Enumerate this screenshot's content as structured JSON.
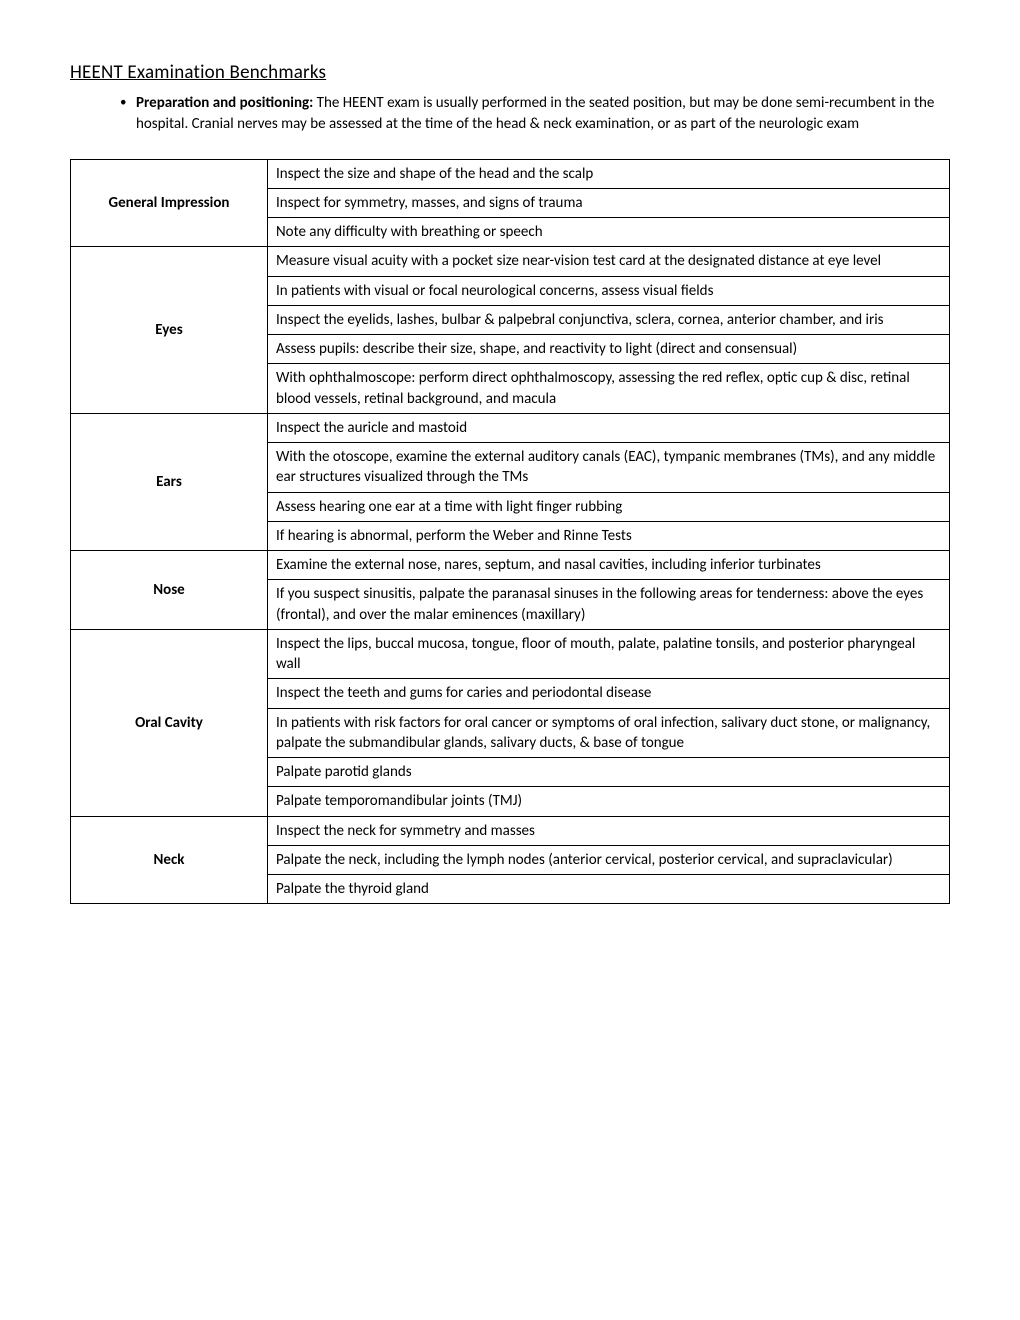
{
  "title": "HEENT Examination Benchmarks",
  "intro": {
    "label": "Preparation and positioning:",
    "text": "  The HEENT exam is usually performed in the seated position, but may be done semi-recumbent in the hospital.  Cranial nerves may be assessed at the time of the head & neck examination, or as part of the neurologic exam"
  },
  "sections": [
    {
      "category": "General Impression",
      "items": [
        "Inspect the size and shape of the head and the scalp",
        "Inspect for symmetry, masses, and signs of trauma",
        "Note any difficulty with breathing or speech"
      ]
    },
    {
      "category": "Eyes",
      "items": [
        "Measure visual acuity with a pocket size near-vision test card at the designated distance at eye level",
        "In patients with visual or focal neurological concerns, assess visual fields",
        "Inspect the eyelids, lashes, bulbar & palpebral conjunctiva, sclera, cornea, anterior chamber, and iris",
        "Assess pupils: describe their size, shape, and reactivity to light (direct and consensual)",
        "With ophthalmoscope: perform direct ophthalmoscopy, assessing the red reflex, optic cup & disc, retinal blood vessels, retinal background, and macula"
      ]
    },
    {
      "category": "Ears",
      "items": [
        "Inspect the auricle and mastoid",
        "With the otoscope, examine the external auditory canals (EAC), tympanic membranes (TMs), and any middle ear structures visualized through the TMs",
        "Assess hearing one ear at a time with light finger rubbing",
        "If hearing is abnormal, perform the Weber and Rinne Tests"
      ]
    },
    {
      "category": "Nose",
      "items": [
        "Examine the external nose, nares, septum, and nasal cavities, including inferior turbinates",
        "If you suspect sinusitis, palpate the paranasal sinuses in the following areas for tenderness: above the eyes (frontal), and over the malar eminences (maxillary)"
      ]
    },
    {
      "category": "Oral Cavity",
      "items": [
        "Inspect the lips, buccal mucosa, tongue, floor of mouth, palate, palatine tonsils, and posterior pharyngeal wall",
        "Inspect the teeth and gums for caries and periodontal disease",
        "In patients with risk factors for oral cancer or symptoms of oral infection, salivary duct stone, or malignancy, palpate the submandibular glands, salivary ducts, & base of tongue",
        "Palpate parotid glands",
        "Palpate temporomandibular joints (TMJ)"
      ]
    },
    {
      "category": "Neck",
      "items": [
        "Inspect the neck for symmetry and masses",
        "Palpate the neck, including the lymph nodes (anterior cervical, posterior cervical, and supraclavicular)",
        "Palpate the thyroid gland"
      ]
    }
  ]
}
